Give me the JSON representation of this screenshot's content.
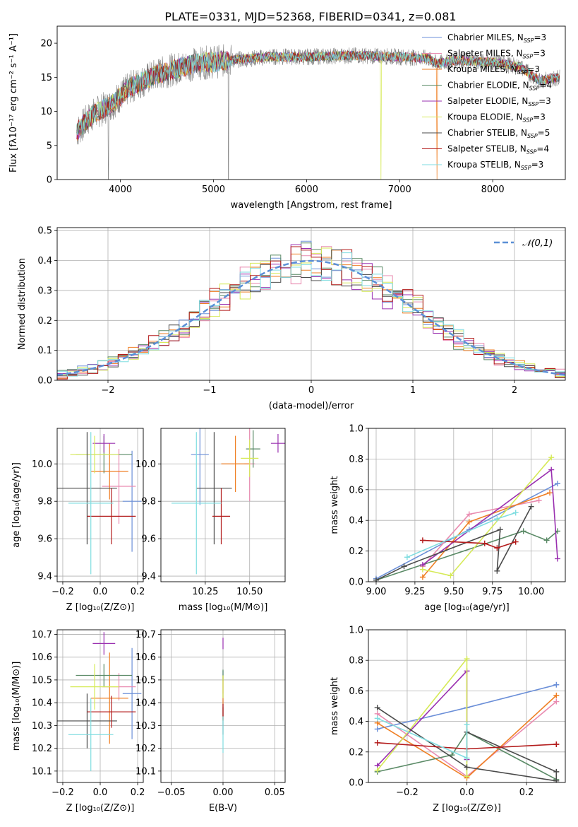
{
  "figure_title": "PLATE=0331, MJD=52368, FIBERID=0341, z=0.081",
  "models": [
    {
      "name": "Chabrier MILES",
      "nssp": "3",
      "color": "#6b8fd8"
    },
    {
      "name": "Salpeter MILES",
      "nssp": "3",
      "color": "#e98bb0"
    },
    {
      "name": "Kroupa MILES",
      "nssp": "3",
      "color": "#ef7f24"
    },
    {
      "name": "Chabrier ELODIE",
      "nssp": "4",
      "color": "#5a8a66"
    },
    {
      "name": "Salpeter ELODIE",
      "nssp": "3",
      "color": "#9a30b0"
    },
    {
      "name": "Kroupa ELODIE",
      "nssp": "3",
      "color": "#d6ea58"
    },
    {
      "name": "Chabrier STELIB",
      "nssp": "5",
      "color": "#4a4a4a"
    },
    {
      "name": "Salpeter STELIB",
      "nssp": "4",
      "color": "#b31b1b"
    },
    {
      "name": "Kroupa STELIB",
      "nssp": "3",
      "color": "#7fdde0"
    }
  ],
  "chart_data": [
    {
      "id": "spectrum",
      "type": "line",
      "xlabel": "wavelength [Angstrom, rest frame]",
      "ylabel": "Flux [fλ10⁻¹⁷ erg cm⁻² s⁻¹ A⁻¹]",
      "xlim": [
        3320,
        8780
      ],
      "ylim": [
        0,
        22.5
      ],
      "xticks": [
        "4000",
        "5000",
        "6000",
        "7000",
        "8000"
      ],
      "yticks": [
        "0",
        "5",
        "10",
        "15",
        "20"
      ],
      "observed_color": "#808080",
      "continuum": [
        [
          3530,
          7
        ],
        [
          3700,
          9.5
        ],
        [
          3900,
          11
        ],
        [
          4100,
          13.5
        ],
        [
          4400,
          15.5
        ],
        [
          4800,
          17
        ],
        [
          5200,
          17.5
        ],
        [
          5600,
          18
        ],
        [
          6000,
          18
        ],
        [
          6500,
          18.2
        ],
        [
          7000,
          18
        ],
        [
          7300,
          17.8
        ],
        [
          7400,
          17
        ],
        [
          7600,
          17.5
        ],
        [
          8000,
          17.2
        ],
        [
          8300,
          16.5
        ],
        [
          8500,
          14.5
        ],
        [
          8720,
          15
        ]
      ],
      "grid": false
    },
    {
      "id": "residuals",
      "type": "histogram",
      "xlabel": "(data-model)/error",
      "ylabel": "Normed distribution",
      "xlim": [
        -2.5,
        2.5
      ],
      "ylim": [
        0,
        0.51
      ],
      "xticks": [
        "−2",
        "−1",
        "0",
        "1",
        "2"
      ],
      "yticks": [
        "0.0",
        "0.1",
        "0.2",
        "0.3",
        "0.4",
        "0.5"
      ],
      "legend": "𝒩(0,1)",
      "legend_position": "top-right",
      "gaussian_color": "#5b8fd6",
      "grid": true
    },
    {
      "id": "z-age",
      "type": "scatter",
      "xlabel": "Z [log₁₀(Z/Z⊙)]",
      "ylabel": "age  [log₁₀(age/yr)]",
      "xlim": [
        -0.23,
        0.23
      ],
      "ylim": [
        9.37,
        10.19
      ],
      "xticks": [
        "−0.2",
        "0.0",
        "0.2"
      ],
      "yticks": [
        "9.4",
        "9.6",
        "9.8",
        "10.0"
      ],
      "grid": true
    },
    {
      "id": "mass-age",
      "type": "scatter",
      "xlabel": "mass [log₁₀(M/M⊙)]",
      "ylabel": "",
      "xlim": [
        10.0,
        10.7
      ],
      "ylim": [
        9.37,
        10.19
      ],
      "xticks": [
        "10.25",
        "10.50"
      ],
      "yticks": [
        "9.4",
        "9.6",
        "9.8",
        "10.0"
      ],
      "grid": true
    },
    {
      "id": "age-weight",
      "type": "line",
      "xlabel": "age  [log₁₀(age/yr)]",
      "ylabel": "mass weight",
      "xlim": [
        8.95,
        10.22
      ],
      "ylim": [
        0,
        1
      ],
      "xticks": [
        "9.00",
        "9.25",
        "9.50",
        "9.75",
        "10.00"
      ],
      "yticks": [
        "0.0",
        "0.2",
        "0.4",
        "0.6",
        "0.8",
        "1.0"
      ],
      "grid": true
    },
    {
      "id": "z-mass",
      "type": "scatter",
      "xlabel": "Z [log₁₀(Z/Z⊙)]",
      "ylabel": "mass [log₁₀(M/M⊙)]",
      "xlim": [
        -0.23,
        0.23
      ],
      "ylim": [
        10.05,
        10.72
      ],
      "xticks": [
        "−0.2",
        "0.0",
        "0.2"
      ],
      "yticks": [
        "10.1",
        "10.2",
        "10.3",
        "10.4",
        "10.5",
        "10.6",
        "10.7"
      ],
      "grid": true
    },
    {
      "id": "ebv-mass",
      "type": "scatter",
      "xlabel": "E(B-V)",
      "ylabel": "",
      "xlim": [
        -0.06,
        0.06
      ],
      "ylim": [
        10.05,
        10.72
      ],
      "xticks": [
        "−0.05",
        "0.00",
        "0.05"
      ],
      "yticks": [
        "10.1",
        "10.2",
        "10.3",
        "10.4",
        "10.5",
        "10.6",
        "10.7"
      ],
      "grid": true
    },
    {
      "id": "z-weight",
      "type": "line",
      "xlabel": "Z [log₁₀(Z/Z⊙)]",
      "ylabel": "mass weight",
      "xlim": [
        -0.33,
        0.33
      ],
      "ylim": [
        0,
        1
      ],
      "xticks": [
        "−0.2",
        "0.0",
        "0.2"
      ],
      "yticks": [
        "0.0",
        "0.2",
        "0.4",
        "0.6",
        "0.8",
        "1.0"
      ],
      "grid": true
    }
  ],
  "model_fits": [
    {
      "z": 0.17,
      "zerr": 0.05,
      "age": 9.8,
      "ageerr": 0.27,
      "agel": 10.05,
      "agelerr": 0.08,
      "mass": 10.44,
      "masserr": 0.2,
      "ebv": 0.0,
      "ages": [
        9.0,
        9.6,
        10.17
      ],
      "wage": [
        0.02,
        0.34,
        0.64
      ],
      "zs": [
        -0.3,
        0.0,
        0.3
      ],
      "wz": [
        0.35,
        0.49,
        0.64
      ]
    },
    {
      "z": 0.1,
      "zerr": 0.09,
      "age": 9.88,
      "ageerr": 0.2,
      "agel": 10.0,
      "agelerr": 0.1,
      "mass": 10.47,
      "masserr": 0.06,
      "ebv": 0.0,
      "ages": [
        9.3,
        9.6,
        10.05
      ],
      "wage": [
        0.1,
        0.44,
        0.53
      ],
      "zs": [
        -0.3,
        0.0,
        0.3
      ],
      "wz": [
        0.45,
        0.04,
        0.53
      ]
    },
    {
      "z": 0.05,
      "zerr": 0.1,
      "age": 9.96,
      "ageerr": 0.15,
      "agel": 10.0,
      "agelerr": 0.1,
      "mass": 10.42,
      "masserr": 0.2,
      "ebv": 0.0,
      "ages": [
        9.3,
        9.6,
        10.12
      ],
      "wage": [
        0.03,
        0.39,
        0.58
      ],
      "zs": [
        -0.3,
        0.0,
        0.3
      ],
      "wz": [
        0.39,
        0.03,
        0.57
      ]
    },
    {
      "z": 0.02,
      "zerr": 0.15,
      "age": 10.05,
      "ageerr": 0.1,
      "agel": 10.08,
      "agelerr": 0.07,
      "mass": 10.52,
      "masserr": 0.05,
      "ebv": 0.0,
      "ages": [
        9.0,
        9.95,
        10.1,
        10.17
      ],
      "wage": [
        0.01,
        0.33,
        0.27,
        0.33
      ],
      "zs": [
        -0.3,
        -0.05,
        0.0,
        0.3
      ],
      "wz": [
        0.07,
        0.18,
        0.33,
        0.02
      ]
    },
    {
      "z": 0.02,
      "zerr": 0.06,
      "age": 10.11,
      "ageerr": 0.05,
      "agel": 10.11,
      "agelerr": 0.05,
      "mass": 10.66,
      "masserr": 0.05,
      "ebv": 0.0,
      "ages": [
        9.3,
        10.13,
        10.17
      ],
      "wage": [
        0.11,
        0.73,
        0.15
      ],
      "zs": [
        -0.3,
        0.0,
        0.0
      ],
      "wz": [
        0.11,
        0.73,
        0.15
      ]
    },
    {
      "z": -0.03,
      "zerr": 0.13,
      "age": 10.05,
      "ageerr": 0.1,
      "agel": 10.03,
      "agelerr": 0.1,
      "mass": 10.47,
      "masserr": 0.1,
      "ebv": 0.0,
      "ages": [
        9.3,
        9.48,
        10.13
      ],
      "wage": [
        0.08,
        0.04,
        0.81
      ],
      "zs": [
        -0.3,
        0.0,
        0.0
      ],
      "wz": [
        0.08,
        0.81,
        0.04
      ]
    },
    {
      "z": -0.07,
      "zerr": 0.16,
      "age": 9.87,
      "ageerr": 0.3,
      "agel": 9.87,
      "agelerr": 0.3,
      "mass": 10.32,
      "masserr": 0.12,
      "ebv": 0.0,
      "ages": [
        9.0,
        9.18,
        9.8,
        9.78,
        10.0
      ],
      "wage": [
        0.01,
        0.1,
        0.34,
        0.07,
        0.49
      ],
      "zs": [
        -0.3,
        0.0,
        0.3,
        0.3,
        0.0
      ],
      "wz": [
        0.49,
        0.1,
        0.01,
        0.07,
        0.33
      ]
    },
    {
      "z": 0.06,
      "zerr": 0.13,
      "age": 9.72,
      "ageerr": 0.15,
      "agel": 9.72,
      "agelerr": 0.15,
      "mass": 10.36,
      "masserr": 0.07,
      "ebv": 0.0,
      "ages": [
        9.3,
        9.7,
        9.78,
        9.9
      ],
      "wage": [
        0.27,
        0.25,
        0.22,
        0.26
      ],
      "zs": [
        -0.3,
        0.0,
        0.3,
        0.3
      ],
      "wz": [
        0.26,
        0.22,
        0.25,
        0.25
      ]
    },
    {
      "z": -0.05,
      "zerr": 0.12,
      "age": 9.79,
      "ageerr": 0.38,
      "agel": 9.79,
      "agelerr": 0.38,
      "mass": 10.26,
      "masserr": 0.16,
      "ebv": 0.0,
      "ages": [
        9.2,
        9.78,
        9.9
      ],
      "wage": [
        0.16,
        0.41,
        0.45
      ],
      "zs": [
        -0.3,
        0.0,
        0.0
      ],
      "wz": [
        0.42,
        0.16,
        0.38
      ]
    }
  ]
}
